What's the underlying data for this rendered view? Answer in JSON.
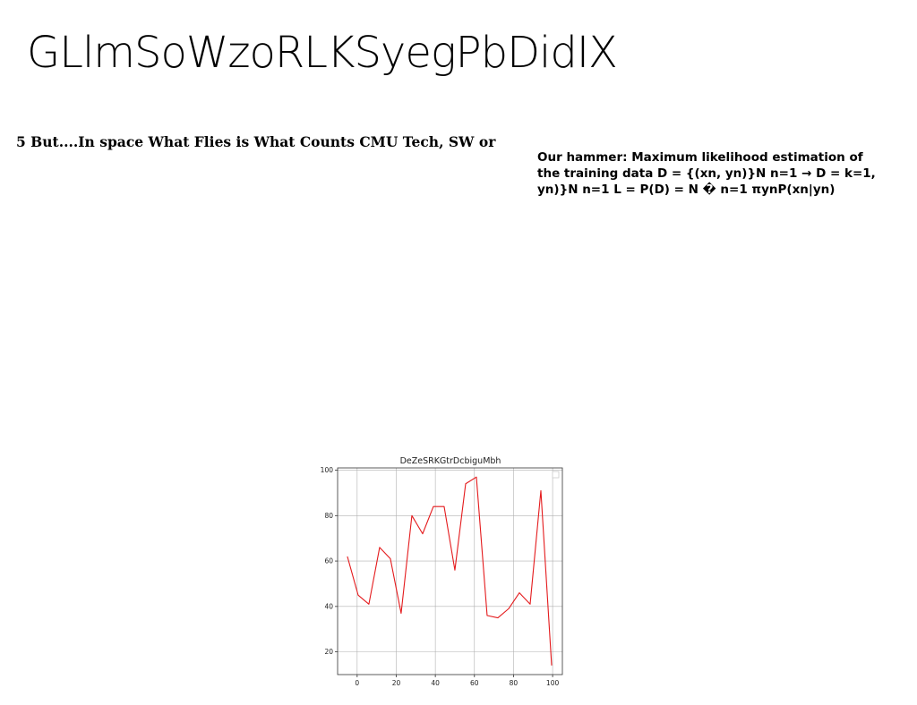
{
  "slide": {
    "title": "GLlmSoWzoRLKSyegPbDidIX",
    "left_text": "5 But....In space What Flies is What Counts CMU Tech, SW or",
    "right_text": "Our hammer: Maximum likelihood estimation of the training data D = {(xn, yn)}N n=1 → D = k=1, yn)}N n=1 L = P(D) = N � n=1 πynP(xn|yn)"
  },
  "chart_data": {
    "type": "line",
    "title": "DeZeSRKGtrDcbiguMbh",
    "xlabel": "",
    "ylabel": "",
    "x": [
      -5,
      0.5,
      6,
      11.5,
      17,
      22.5,
      28,
      33.5,
      39,
      44.5,
      50,
      55.5,
      61,
      66.5,
      72,
      77.5,
      83,
      88.5,
      94,
      99.5
    ],
    "series": [
      {
        "color": "#e41a1c",
        "values": [
          62,
          45,
          41,
          66,
          61,
          37,
          80,
          72,
          84,
          84,
          56,
          94,
          97,
          36,
          35,
          39,
          46,
          41,
          91,
          14
        ]
      }
    ],
    "xlim": [
      -10,
      105
    ],
    "ylim": [
      10,
      101
    ],
    "xticks": [
      0,
      20,
      40,
      60,
      80,
      100
    ],
    "yticks": [
      20,
      40,
      60,
      80,
      100
    ],
    "grid": true,
    "legend": "top-right"
  }
}
